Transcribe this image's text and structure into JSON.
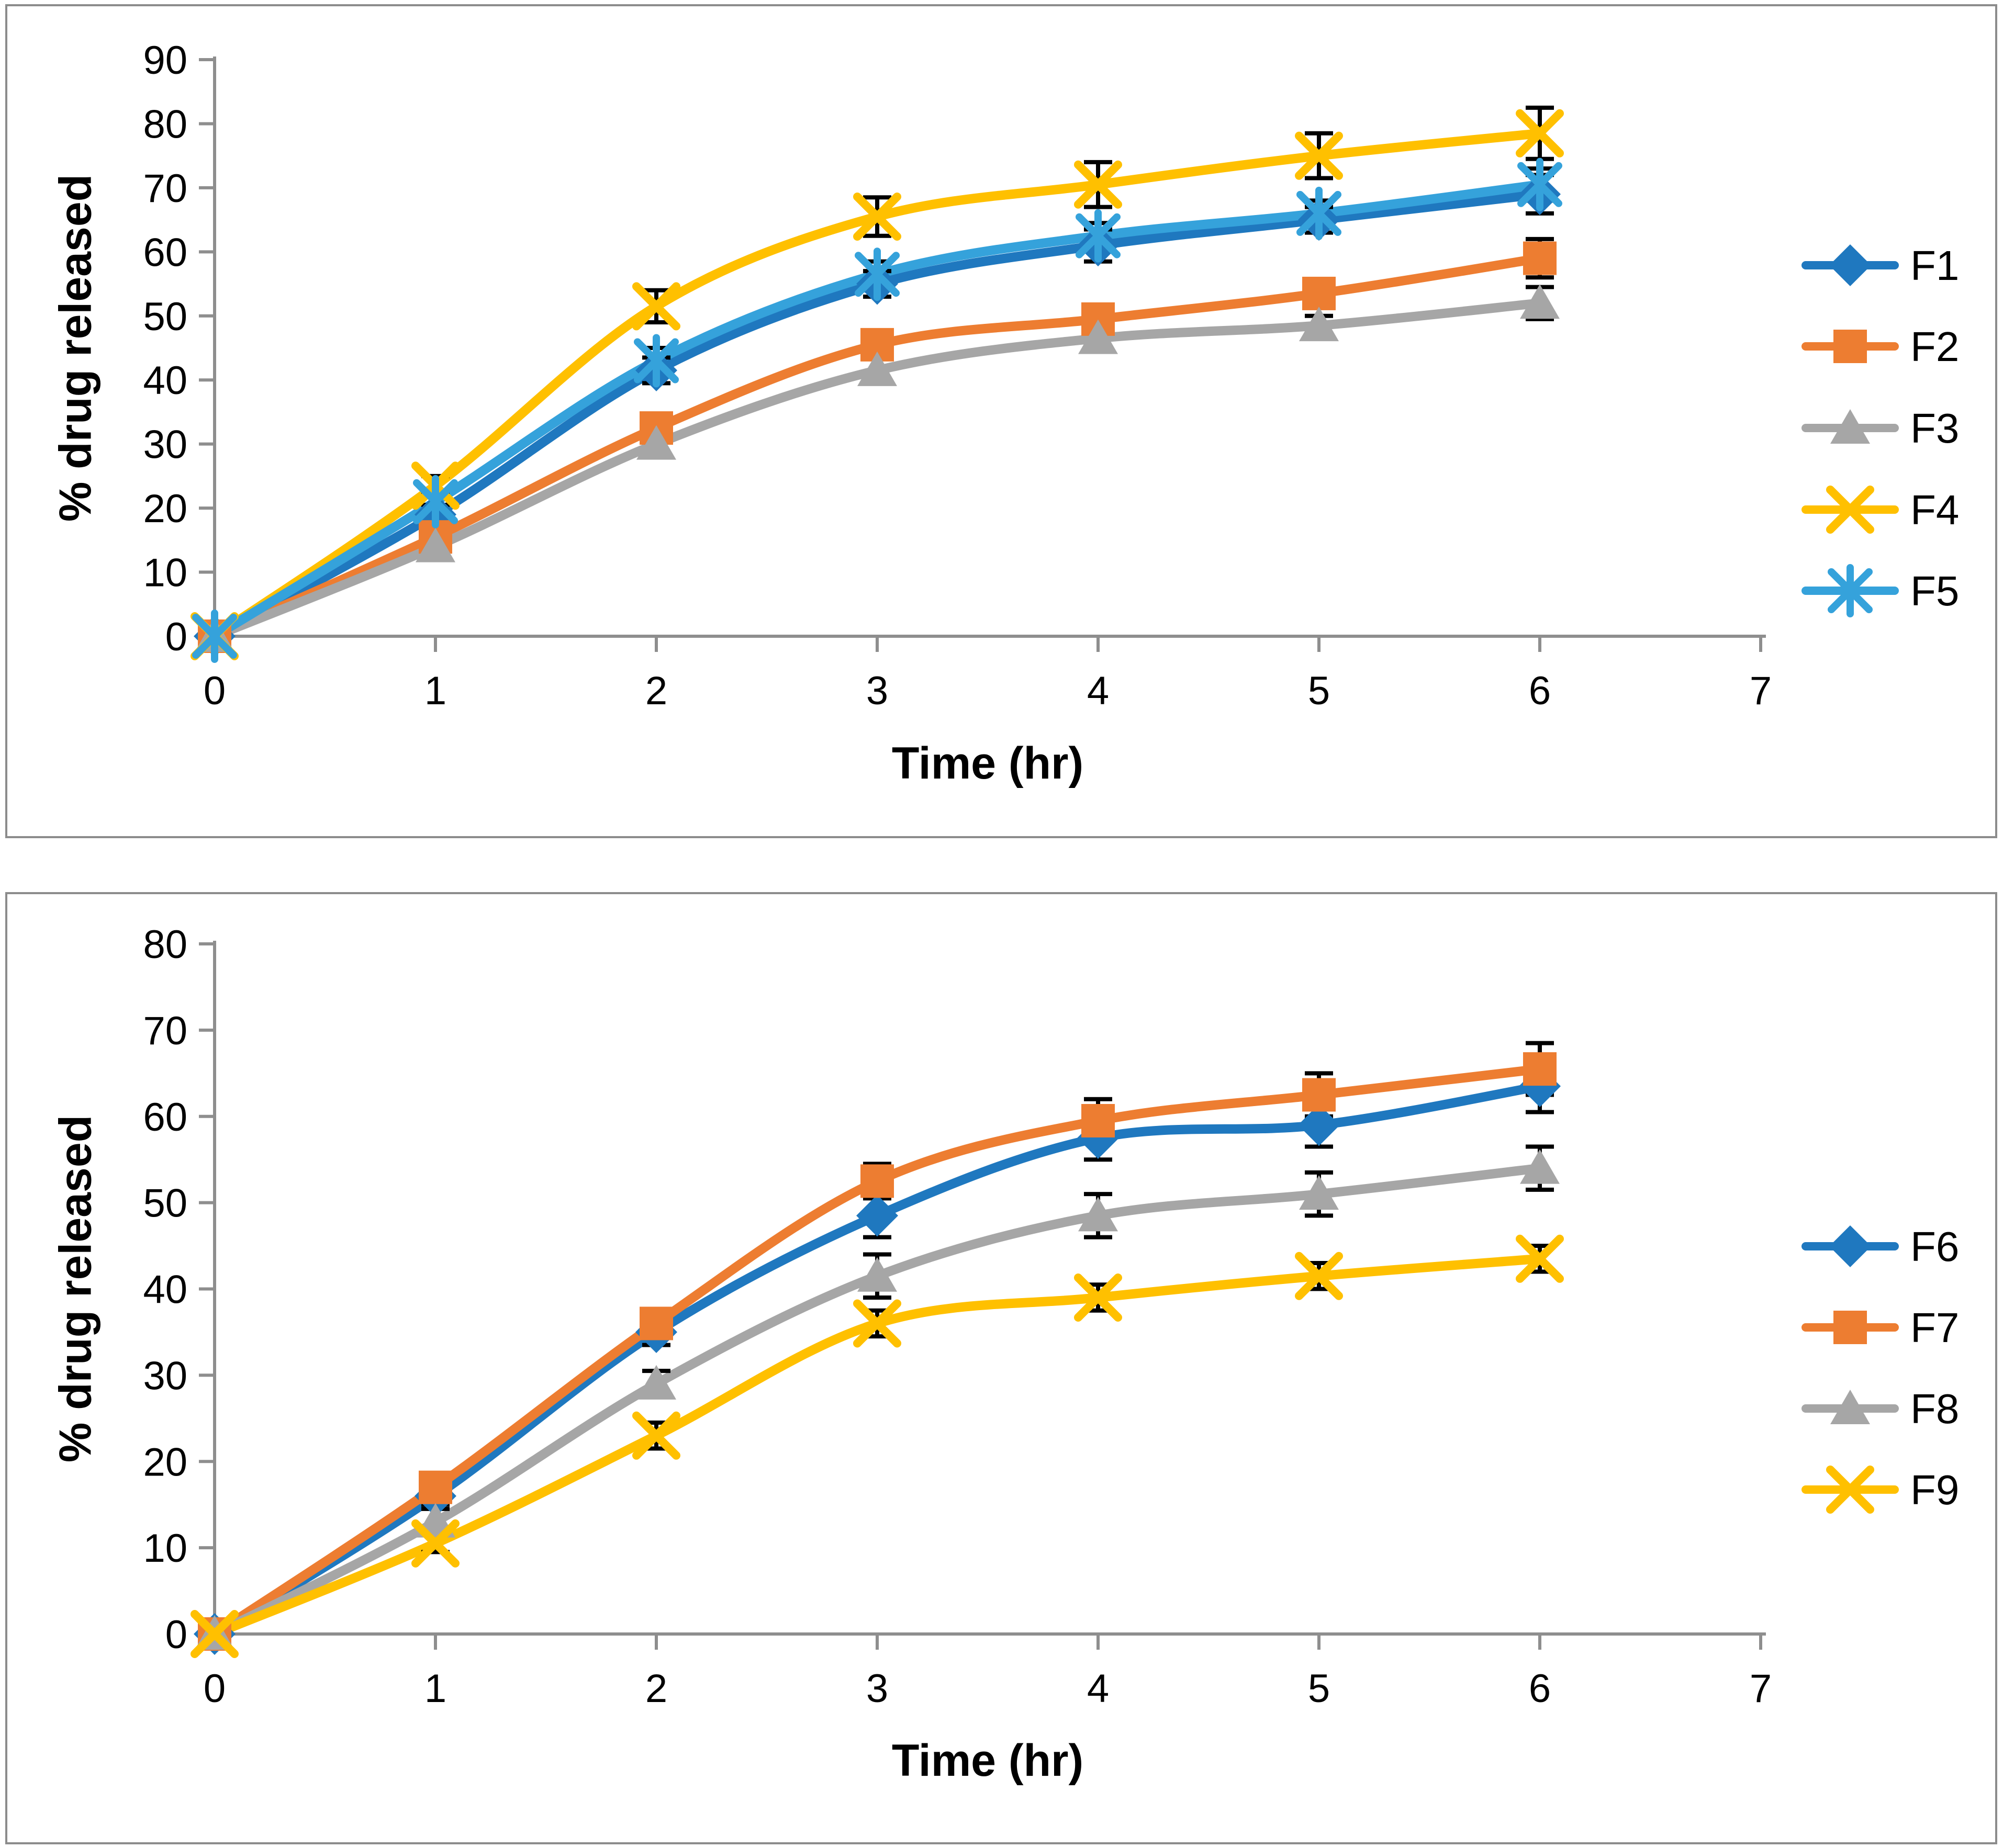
{
  "page": {
    "background": "#FFFFFF"
  },
  "styles": {
    "axis_color": "#8E8E8E",
    "error_bar_color": "#000000",
    "panel_border_color": "#8C8C8C",
    "text_color": "#000000"
  },
  "chart_data": [
    {
      "type": "line",
      "title": "",
      "xlabel": "Time (hr)",
      "ylabel": "% drug released",
      "x": [
        0,
        1,
        2,
        3,
        4,
        5,
        6
      ],
      "x_ticks": [
        0,
        1,
        2,
        3,
        4,
        5,
        6,
        7
      ],
      "y_ticks": [
        0,
        10,
        20,
        30,
        40,
        50,
        60,
        70,
        80,
        90
      ],
      "xlim": [
        0,
        7
      ],
      "ylim": [
        0,
        90
      ],
      "grid": false,
      "smooth_lines": true,
      "error_bars": true,
      "legend_position": "right",
      "series": [
        {
          "name": "F1",
          "marker": "diamond",
          "color": "#1F78BF",
          "values": [
            0,
            19,
            41.5,
            55,
            61,
            65,
            69
          ],
          "errors": [
            0,
            1.5,
            2,
            2,
            2.5,
            2,
            3
          ]
        },
        {
          "name": "F2",
          "marker": "square",
          "color": "#ED7D31",
          "values": [
            0,
            15.5,
            32.5,
            45.5,
            49.5,
            53.5,
            59
          ],
          "errors": [
            0,
            1,
            1.5,
            1.5,
            2,
            1.5,
            3
          ]
        },
        {
          "name": "F3",
          "marker": "triangle",
          "color": "#A6A6A6",
          "values": [
            0,
            14,
            30,
            41.5,
            46.5,
            48.5,
            52
          ],
          "errors": [
            0,
            1,
            1.5,
            2,
            1.5,
            1.5,
            2.5
          ]
        },
        {
          "name": "F4",
          "marker": "x",
          "color": "#FFC000",
          "values": [
            0,
            23.5,
            51.5,
            65.5,
            70.5,
            75,
            78.5
          ],
          "errors": [
            0,
            1.5,
            2.5,
            3,
            3.5,
            3.5,
            4
          ]
        },
        {
          "name": "F5",
          "marker": "asterisk",
          "color": "#35A2DB",
          "values": [
            0,
            21,
            43,
            56.5,
            62.5,
            66,
            70.5
          ],
          "errors": [
            0,
            1.5,
            2,
            2,
            2,
            2,
            2.5
          ]
        }
      ]
    },
    {
      "type": "line",
      "title": "",
      "xlabel": "Time (hr)",
      "ylabel": "% drug released",
      "x": [
        0,
        1,
        2,
        3,
        4,
        5,
        6
      ],
      "x_ticks": [
        0,
        1,
        2,
        3,
        4,
        5,
        6,
        7
      ],
      "y_ticks": [
        0,
        10,
        20,
        30,
        40,
        50,
        60,
        70,
        80
      ],
      "xlim": [
        0,
        7
      ],
      "ylim": [
        0,
        80
      ],
      "grid": false,
      "smooth_lines": true,
      "error_bars": true,
      "legend_position": "right",
      "series": [
        {
          "name": "F6",
          "marker": "diamond",
          "color": "#1F78BF",
          "values": [
            0,
            16,
            35,
            48.5,
            57.5,
            59,
            63.5
          ],
          "errors": [
            0,
            1,
            1.5,
            2.5,
            2.5,
            2.5,
            3
          ]
        },
        {
          "name": "F7",
          "marker": "square",
          "color": "#ED7D31",
          "values": [
            0,
            17,
            36,
            52.5,
            59.5,
            62.5,
            65.5
          ],
          "errors": [
            0,
            1,
            1.5,
            2,
            2.5,
            2.5,
            3
          ]
        },
        {
          "name": "F8",
          "marker": "triangle",
          "color": "#A6A6A6",
          "values": [
            0,
            13,
            29,
            41.5,
            48.5,
            51,
            54
          ],
          "errors": [
            0,
            1.5,
            1.5,
            2.5,
            2.5,
            2.5,
            2.5
          ]
        },
        {
          "name": "F9",
          "marker": "x",
          "color": "#FFC000",
          "values": [
            0,
            10.5,
            23,
            36,
            39,
            41.5,
            43.5
          ],
          "errors": [
            0,
            1,
            1.5,
            1.5,
            1.5,
            1.5,
            1.5
          ]
        }
      ]
    }
  ]
}
